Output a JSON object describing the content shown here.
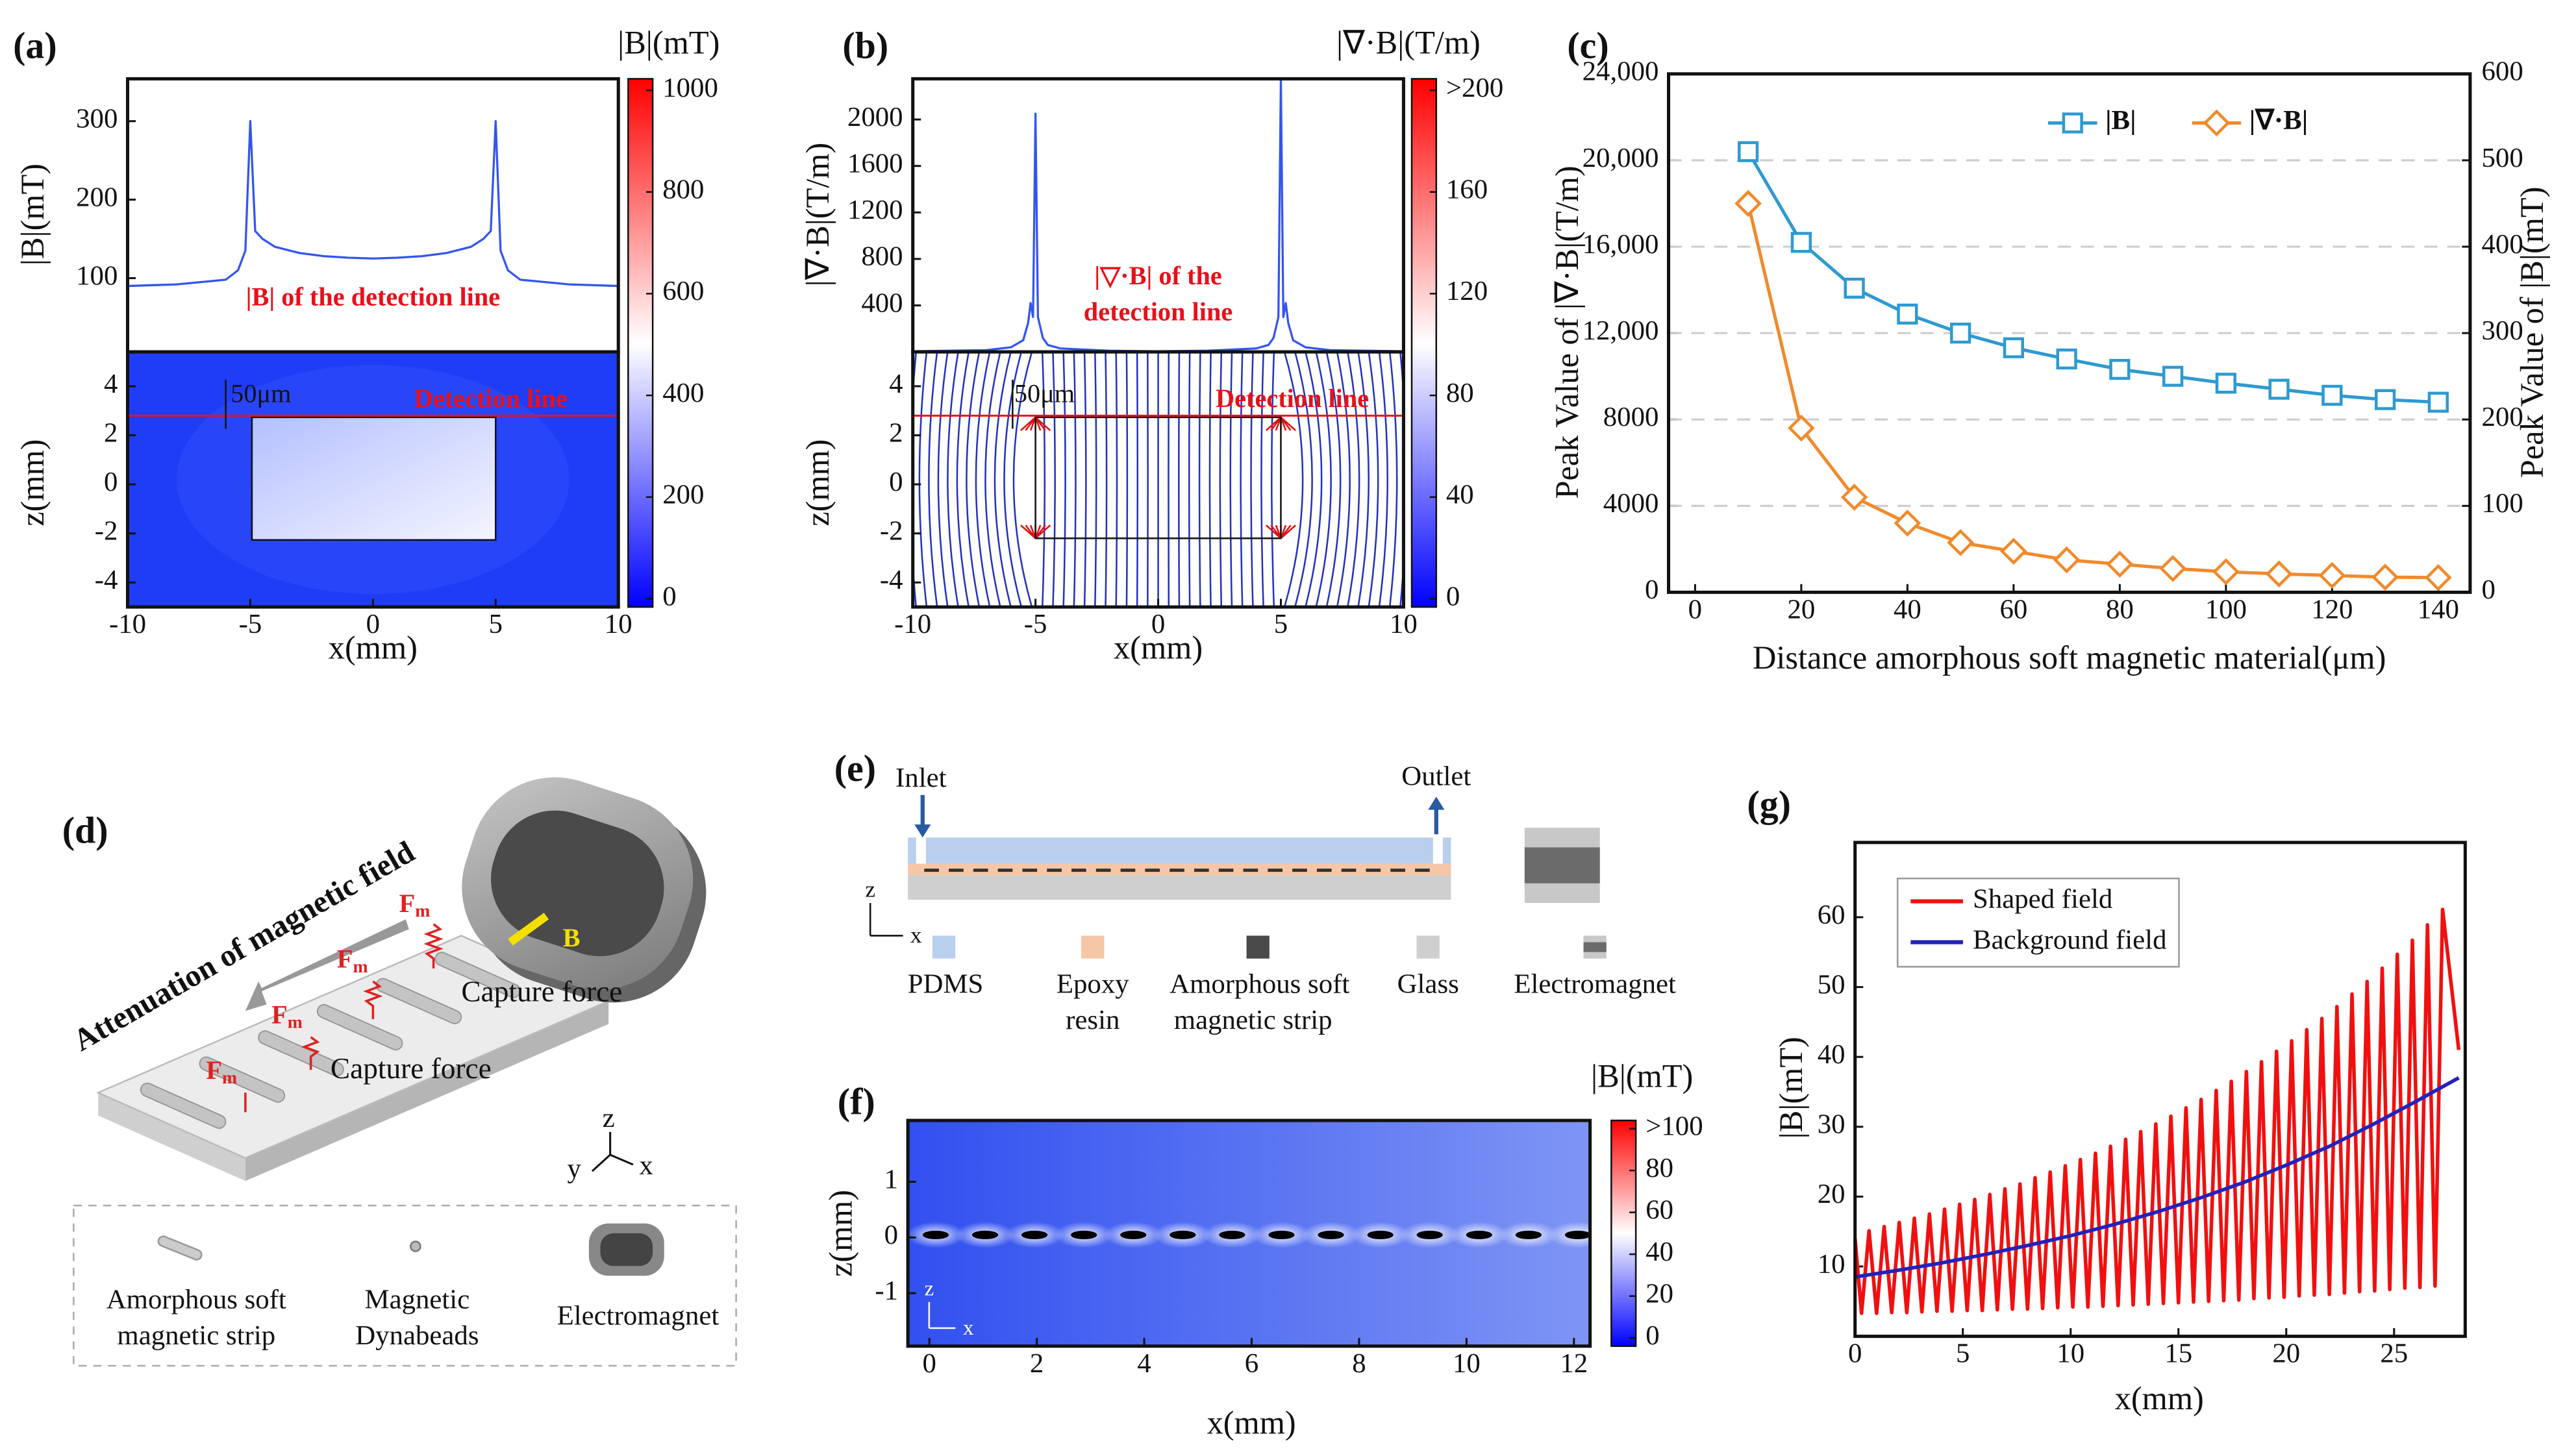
{
  "panel_labels": [
    "(a)",
    "(b)",
    "(c)",
    "(d)",
    "(e)",
    "(f)",
    "(g)"
  ],
  "chart_data": [
    {
      "type": "line",
      "ylabel": "|B|(mT)",
      "xlim": [
        -10,
        10
      ],
      "ylim": [
        6,
        354
      ],
      "yticks": [
        100,
        200,
        300
      ],
      "x": [
        -10,
        -8,
        -6,
        -5.5,
        -5.2,
        -5,
        -4.8,
        -4.5,
        -4,
        -3,
        -2,
        -1,
        0,
        1,
        2,
        3,
        4,
        4.5,
        4.8,
        5,
        5.2,
        5.5,
        6,
        8,
        10
      ],
      "series": [
        {
          "color": "#3355ee",
          "values": [
            90,
            92,
            98,
            110,
            135,
            300,
            160,
            150,
            140,
            132,
            128,
            126,
            125,
            126,
            128,
            132,
            140,
            150,
            160,
            300,
            135,
            110,
            98,
            92,
            90
          ]
        }
      ],
      "annotation": [
        "|B| of the detection line"
      ]
    },
    {
      "type": "heatmap",
      "xlabel": "x(mm)",
      "ylabel": "z(mm)",
      "xlim": [
        -10,
        10
      ],
      "xticks": [
        -10,
        -5,
        0,
        5,
        10
      ],
      "ylim": [
        -5,
        5.4
      ],
      "yticks": [
        -4,
        -2,
        0,
        2,
        4
      ],
      "gap_label": "50μm",
      "line_label": "Detection line",
      "colorbar": {
        "label": "|B|(mT)",
        "lim": [
          0,
          1000
        ],
        "ticks": [
          0,
          200,
          400,
          600,
          800,
          1000
        ]
      }
    },
    {
      "type": "line",
      "ylabel": "|∇·B|(T/m)",
      "xlim": [
        -10,
        10
      ],
      "ylim": [
        0,
        2350
      ],
      "yticks": [
        400,
        800,
        1200,
        1600,
        2000
      ],
      "x": [
        -10,
        -7,
        -6,
        -5.5,
        -5.3,
        -5.2,
        -5.1,
        -5,
        -4.9,
        -4.7,
        -4.5,
        -4,
        -2,
        0,
        2,
        4,
        4.5,
        4.7,
        4.9,
        5,
        5.1,
        5.2,
        5.3,
        5.5,
        6,
        7,
        10
      ],
      "series": [
        {
          "color": "#3355ee",
          "values": [
            5,
            15,
            40,
            100,
            250,
            420,
            300,
            2050,
            300,
            120,
            60,
            30,
            10,
            5,
            10,
            30,
            60,
            120,
            300,
            2350,
            300,
            420,
            250,
            100,
            40,
            15,
            5
          ]
        }
      ],
      "annotation": [
        "|▽·B| of the",
        "detection line"
      ]
    },
    {
      "type": "heatmap",
      "xlabel": "x(mm)",
      "ylabel": "z(mm)",
      "xlim": [
        -10,
        10
      ],
      "xticks": [
        -10,
        -5,
        0,
        5,
        10
      ],
      "ylim": [
        -5,
        5.4
      ],
      "yticks": [
        -4,
        -2,
        0,
        2,
        4
      ],
      "gap_label": "50μm",
      "line_label": "Detection line",
      "colorbar": {
        "label": "|∇·B|(T/m)",
        "lim": [
          0,
          200
        ],
        "ticks": [
          0,
          40,
          80,
          120,
          160,
          {
            "value": 200,
            "label": ">200"
          }
        ]
      }
    },
    {
      "type": "line",
      "xlabel": "Distance amorphous soft magnetic material(μm)",
      "ylabel": "Peak Value of |∇·B|(T/m)",
      "y2label": "Peak Value of |B|(mT)",
      "xlim": [
        -5,
        146
      ],
      "xticks": [
        0,
        20,
        40,
        60,
        80,
        100,
        120,
        140
      ],
      "ylim": [
        0,
        24000
      ],
      "yticks": [
        0,
        4000,
        8000,
        {
          "value": 12000,
          "label": "12,000"
        },
        {
          "value": 16000,
          "label": "16,000"
        },
        {
          "value": 20000,
          "label": "20,000"
        },
        {
          "value": 24000,
          "label": "24,000"
        }
      ],
      "y2lim": [
        0,
        600
      ],
      "y2ticks": [
        0,
        100,
        200,
        300,
        400,
        500,
        600
      ],
      "grid": true,
      "legend": "top",
      "x": [
        10,
        20,
        30,
        40,
        50,
        60,
        70,
        80,
        90,
        100,
        110,
        120,
        130,
        140
      ],
      "series": [
        {
          "name": "|B|",
          "color": "#2e9ad0",
          "axis": "y2",
          "marker": "square",
          "values": [
            510,
            405,
            352,
            322,
            300,
            283,
            270,
            258,
            250,
            242,
            235,
            228,
            223,
            220
          ]
        },
        {
          "name": "|∇·B|",
          "color": "#f08a2c",
          "marker": "diamond",
          "values": [
            18000,
            7600,
            4400,
            3200,
            2300,
            1900,
            1500,
            1300,
            1100,
            950,
            850,
            780,
            700,
            680
          ]
        }
      ]
    },
    {
      "type": "heatmap",
      "xlabel": "x(mm)",
      "ylabel": "z(mm)",
      "xlim": [
        -0.4,
        12.3
      ],
      "xticks": [
        0,
        2,
        4,
        6,
        8,
        10,
        12
      ],
      "ylim": [
        -1.95,
        2.1
      ],
      "yticks": [
        -1,
        0,
        1
      ],
      "inset_axes": [
        "z",
        "x"
      ],
      "colorbar": {
        "label": "|B|(mT)",
        "lim": [
          0,
          100
        ],
        "ticks": [
          0,
          20,
          40,
          60,
          80,
          {
            "value": 100,
            "label": ">100"
          }
        ]
      }
    },
    {
      "type": "line",
      "xlabel": "x(mm)",
      "ylabel": "|B|(mT)",
      "xlim": [
        0,
        28.3
      ],
      "xticks": [
        0,
        5,
        10,
        15,
        20,
        25
      ],
      "ylim": [
        0,
        70.7
      ],
      "yticks": [
        10,
        20,
        30,
        40,
        50,
        60
      ],
      "legend": "upper left",
      "series": [
        {
          "name": "Shaped field",
          "color": "#f01010",
          "x": [
            0,
            0.3,
            0.65,
            1.0,
            1.35,
            1.7,
            2.05,
            2.4,
            2.75,
            3.1,
            3.45,
            3.8,
            4.15,
            4.5,
            4.85,
            5.2,
            5.55,
            5.9,
            6.25,
            6.6,
            6.95,
            7.3,
            7.65,
            8.0,
            8.35,
            8.7,
            9.05,
            9.4,
            9.75,
            10.1,
            10.45,
            10.8,
            11.15,
            11.5,
            11.85,
            12.2,
            12.55,
            12.9,
            13.25,
            13.6,
            13.95,
            14.3,
            14.65,
            15.0,
            15.35,
            15.7,
            16.05,
            16.4,
            16.75,
            17.1,
            17.45,
            17.8,
            18.15,
            18.5,
            18.85,
            19.2,
            19.55,
            19.9,
            20.25,
            20.6,
            20.95,
            21.3,
            21.65,
            22.0,
            22.35,
            22.7,
            23.05,
            23.4,
            23.75,
            24.1,
            24.45,
            24.8,
            25.15,
            25.5,
            25.85,
            26.2,
            26.55,
            26.9,
            27.25,
            28
          ],
          "values": [
            14,
            3.3,
            15.1,
            3.3,
            15.7,
            3.4,
            16.3,
            3.4,
            16.9,
            3.5,
            17.5,
            3.6,
            18.2,
            3.6,
            18.9,
            3.7,
            19.6,
            3.7,
            20.3,
            3.8,
            21.1,
            3.9,
            21.8,
            3.9,
            22.7,
            4.0,
            23.5,
            4.1,
            24.4,
            4.2,
            25.3,
            4.2,
            26.2,
            4.3,
            27.2,
            4.4,
            28.2,
            4.5,
            29.3,
            4.6,
            30.4,
            4.7,
            31.5,
            4.8,
            32.7,
            4.9,
            33.9,
            5.0,
            35.2,
            5.1,
            36.5,
            5.2,
            37.9,
            5.4,
            39.3,
            5.5,
            40.8,
            5.6,
            42.3,
            5.8,
            43.9,
            5.9,
            45.5,
            6.0,
            47.2,
            6.2,
            49.0,
            6.4,
            50.8,
            6.5,
            52.7,
            6.7,
            54.7,
            6.9,
            56.7,
            7.0,
            58.9,
            7.2,
            61.1,
            41
          ]
        },
        {
          "name": "Background field",
          "color": "#2222bb",
          "x": [
            0,
            2,
            4,
            6,
            8,
            10,
            12,
            14,
            16,
            18,
            20,
            22,
            24,
            26,
            28
          ],
          "values": [
            8.5,
            9.45,
            10.5,
            11.7,
            13.0,
            14.4,
            16.0,
            17.8,
            19.8,
            22.0,
            24.5,
            27.2,
            30.3,
            33.6,
            37.0
          ]
        }
      ]
    }
  ],
  "diagram_d": {
    "arrow_label": "Attenuation of magnetic field",
    "field_label": "B",
    "forces": [
      {
        "base": "F",
        "sub": "m"
      },
      {
        "base": "F",
        "sub": "m"
      },
      {
        "base": "F",
        "sub": "m"
      },
      {
        "base": "F",
        "sub": "m"
      }
    ],
    "capture_labels": [
      "Capture force",
      "Capture force"
    ],
    "axes": [
      "z",
      "y",
      "x"
    ],
    "legend": [
      {
        "lines": [
          "Amorphous soft",
          "magnetic strip"
        ]
      },
      {
        "lines": [
          "Magnetic",
          "Dynabeads"
        ]
      },
      {
        "lines": [
          "Electromagnet"
        ]
      }
    ]
  },
  "diagram_e": {
    "inlet": "Inlet",
    "outlet": "Outlet",
    "axes": [
      "z",
      "x"
    ],
    "legend": [
      {
        "lines": [
          "PDMS"
        ]
      },
      {
        "lines": [
          "Epoxy",
          "resin"
        ]
      },
      {
        "lines": [
          "Amorphous soft",
          "magnetic strip"
        ]
      },
      {
        "lines": [
          "Glass"
        ]
      },
      {
        "lines": [
          "Electromagnet"
        ]
      }
    ]
  }
}
